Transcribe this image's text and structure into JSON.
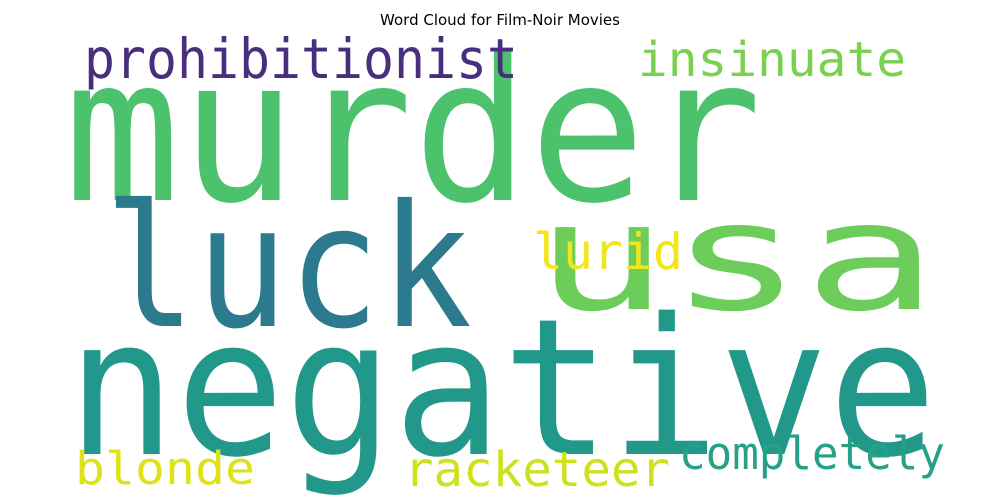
{
  "chart_data": {
    "type": "wordcloud",
    "title": "Word Cloud for Film-Noir Movies",
    "colormap": "viridis",
    "background": "#ffffff",
    "words": [
      {
        "text": "murder",
        "color": "#4cc26c"
      },
      {
        "text": "negative",
        "color": "#22988b"
      },
      {
        "text": "luck",
        "color": "#2c7a8e"
      },
      {
        "text": "usa",
        "color": "#6ccd5a"
      },
      {
        "text": "prohibitionist",
        "color": "#472f7d"
      },
      {
        "text": "insinuate",
        "color": "#7ad151"
      },
      {
        "text": "lurid",
        "color": "#f1e51d"
      },
      {
        "text": "completely",
        "color": "#24a187"
      },
      {
        "text": "racketeer",
        "color": "#cde11d"
      },
      {
        "text": "blonde",
        "color": "#dde318"
      }
    ]
  }
}
